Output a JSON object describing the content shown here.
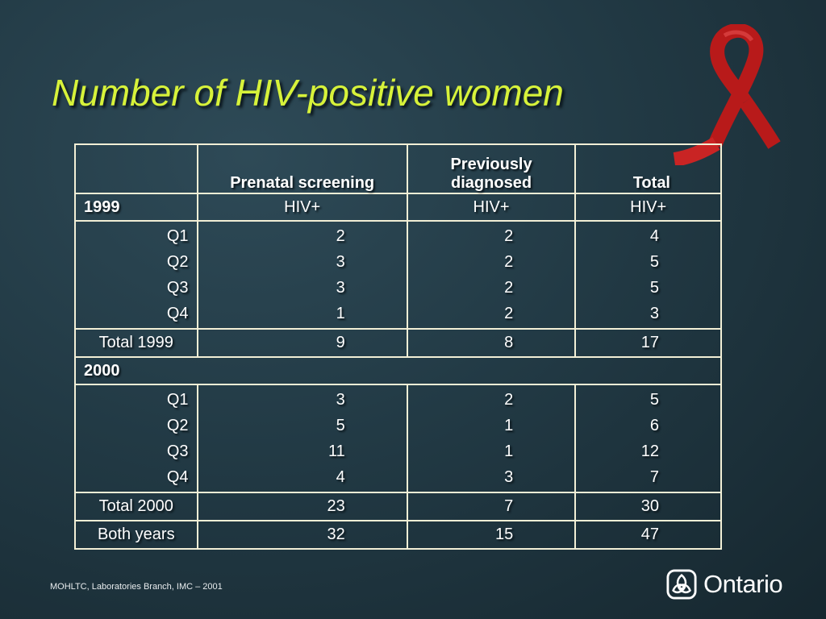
{
  "title": "Number of HIV-positive women",
  "table": {
    "headers": {
      "col1": "Prenatal screening",
      "col2_line1": "Previously",
      "col2_line2": "diagnosed",
      "col3": "Total"
    },
    "year1999": {
      "label": "1999",
      "units": [
        "HIV+",
        "HIV+",
        "HIV+"
      ],
      "rows": [
        {
          "q": "Q1",
          "a": "2",
          "b": "2",
          "t": "4"
        },
        {
          "q": "Q2",
          "a": "3",
          "b": "2",
          "t": "5"
        },
        {
          "q": "Q3",
          "a": "3",
          "b": "2",
          "t": "5"
        },
        {
          "q": "Q4",
          "a": "1",
          "b": "2",
          "t": "3"
        }
      ],
      "total": {
        "label": "Total 1999",
        "a": "9",
        "b": "8",
        "t": "17"
      }
    },
    "year2000": {
      "label": "2000",
      "rows": [
        {
          "q": "Q1",
          "a": "3",
          "b": "2",
          "t": "5"
        },
        {
          "q": "Q2",
          "a": "5",
          "b": "1",
          "t": "6"
        },
        {
          "q": "Q3",
          "a": "11",
          "b": "1",
          "t": "12"
        },
        {
          "q": "Q4",
          "a": "4",
          "b": "3",
          "t": "7"
        }
      ],
      "total": {
        "label": "Total 2000",
        "a": "23",
        "b": "7",
        "t": "30"
      }
    },
    "both": {
      "label": "Both years",
      "a": "32",
      "b": "15",
      "t": "47"
    }
  },
  "footer": "MOHLTC, Laboratories Branch, IMC – 2001",
  "logo_text": "Ontario",
  "colors": {
    "title": "#d7f23a",
    "ribbon": "#c41e1e",
    "border": "#f2efd6"
  }
}
